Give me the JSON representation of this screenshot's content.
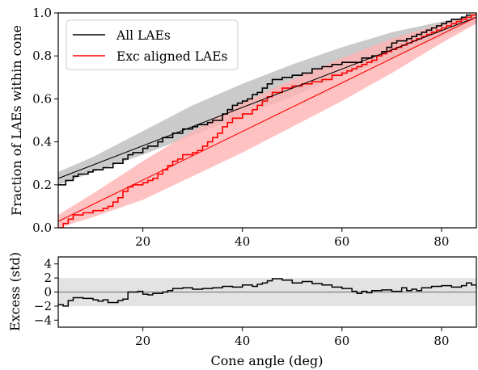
{
  "chart_data": [
    {
      "type": "line",
      "ylabel": "Fraction of LAEs within cone",
      "xlim": [
        3,
        87
      ],
      "ylim": [
        0,
        1
      ],
      "xticks": [
        "20",
        "40",
        "60",
        "80"
      ],
      "yticks": [
        "0.0",
        "0.2",
        "0.4",
        "0.6",
        "0.8",
        "1.0"
      ],
      "legend": {
        "placement": "top-left",
        "entries": [
          "All LAEs",
          "Exc aligned LAEs"
        ]
      },
      "series": [
        {
          "name": "All LAEs",
          "style": "step",
          "color": "#000000",
          "x": [
            3,
            4.5,
            6,
            7,
            9,
            10,
            12,
            14,
            16,
            17,
            18,
            20,
            21,
            23,
            24,
            26,
            28,
            30,
            31,
            33,
            34,
            36,
            37,
            38,
            39,
            40,
            41,
            42,
            43,
            44,
            45,
            46,
            48,
            50,
            52,
            54,
            56,
            58,
            60,
            62,
            64,
            66,
            68,
            69,
            70,
            71,
            72,
            73,
            74,
            75,
            76,
            77,
            78,
            79,
            80,
            81,
            82,
            83,
            84,
            85,
            86,
            87
          ],
          "y": [
            0.2,
            0.22,
            0.24,
            0.25,
            0.26,
            0.27,
            0.28,
            0.3,
            0.32,
            0.34,
            0.35,
            0.37,
            0.38,
            0.4,
            0.42,
            0.44,
            0.46,
            0.47,
            0.48,
            0.49,
            0.5,
            0.53,
            0.55,
            0.57,
            0.58,
            0.59,
            0.6,
            0.62,
            0.63,
            0.65,
            0.67,
            0.69,
            0.7,
            0.71,
            0.72,
            0.74,
            0.75,
            0.76,
            0.77,
            0.77,
            0.79,
            0.8,
            0.82,
            0.84,
            0.86,
            0.87,
            0.87,
            0.88,
            0.89,
            0.9,
            0.91,
            0.92,
            0.93,
            0.94,
            0.95,
            0.96,
            0.97,
            0.97,
            0.98,
            0.99,
            0.99,
            1.0
          ]
        },
        {
          "name": "Exc aligned LAEs",
          "style": "step",
          "color": "#ff0000",
          "x": [
            3,
            4,
            5,
            6,
            8,
            10,
            12,
            13,
            14,
            15,
            16,
            17,
            18,
            20,
            21,
            22,
            23,
            24,
            25,
            26,
            27,
            28,
            30,
            31,
            32,
            33,
            34,
            35,
            36,
            37,
            38,
            40,
            42,
            43,
            44,
            45,
            46,
            48,
            50,
            52,
            54,
            56,
            58,
            60,
            61,
            62,
            63,
            64,
            65,
            66,
            67,
            68,
            69,
            70,
            71,
            72,
            73,
            74,
            75,
            76,
            77,
            78,
            79,
            80,
            81,
            82,
            83,
            84,
            85,
            86,
            87
          ],
          "y": [
            0.0,
            0.02,
            0.04,
            0.06,
            0.07,
            0.08,
            0.09,
            0.1,
            0.12,
            0.14,
            0.17,
            0.19,
            0.2,
            0.21,
            0.22,
            0.23,
            0.25,
            0.27,
            0.29,
            0.31,
            0.32,
            0.34,
            0.35,
            0.36,
            0.38,
            0.4,
            0.42,
            0.44,
            0.47,
            0.49,
            0.51,
            0.53,
            0.55,
            0.57,
            0.59,
            0.61,
            0.63,
            0.65,
            0.66,
            0.67,
            0.68,
            0.69,
            0.71,
            0.72,
            0.73,
            0.74,
            0.75,
            0.76,
            0.77,
            0.78,
            0.8,
            0.81,
            0.82,
            0.83,
            0.84,
            0.85,
            0.86,
            0.87,
            0.88,
            0.89,
            0.9,
            0.91,
            0.92,
            0.93,
            0.94,
            0.95,
            0.96,
            0.97,
            0.98,
            0.99,
            1.0
          ]
        },
        {
          "name": "",
          "style": "line",
          "color": "#000000",
          "x": [
            3,
            87
          ],
          "y": [
            0.23,
            0.98
          ]
        },
        {
          "name": "",
          "style": "line",
          "color": "#ff0000",
          "x": [
            3,
            87
          ],
          "y": [
            0.03,
            0.98
          ]
        }
      ],
      "bands": [
        {
          "color": "#bdbdbd",
          "x": [
            3,
            10,
            20,
            30,
            40,
            50,
            60,
            70,
            80,
            87
          ],
          "lower": [
            0.2,
            0.26,
            0.34,
            0.43,
            0.52,
            0.61,
            0.71,
            0.79,
            0.89,
            0.95
          ],
          "upper": [
            0.26,
            0.33,
            0.45,
            0.57,
            0.67,
            0.76,
            0.84,
            0.91,
            0.96,
            0.99
          ]
        },
        {
          "color": "#ffb3b3",
          "x": [
            3,
            10,
            20,
            30,
            40,
            50,
            60,
            70,
            80,
            87
          ],
          "lower": [
            0.0,
            0.05,
            0.13,
            0.24,
            0.35,
            0.47,
            0.59,
            0.72,
            0.86,
            0.95
          ],
          "upper": [
            0.06,
            0.16,
            0.31,
            0.45,
            0.58,
            0.69,
            0.79,
            0.88,
            0.95,
            0.99
          ]
        }
      ]
    },
    {
      "type": "line",
      "xlabel": "Cone angle (deg)",
      "ylabel": "Excess (std)",
      "xlim": [
        3,
        87
      ],
      "ylim": [
        -5,
        5
      ],
      "xticks": [
        "20",
        "40",
        "60",
        "80"
      ],
      "yticks": [
        "4",
        "2",
        "0",
        "−2",
        "−4"
      ],
      "band": {
        "lower": -2,
        "upper": 2,
        "color": "#e3e3e3"
      },
      "reference_line": 0,
      "series": [
        {
          "name": "",
          "style": "step",
          "color": "#000000",
          "x": [
            3,
            4,
            5,
            6,
            8,
            10,
            11,
            12,
            13,
            15,
            16,
            17,
            19,
            20,
            21,
            22,
            24,
            25,
            26,
            28,
            30,
            32,
            34,
            36,
            38,
            40,
            42,
            43,
            44,
            45,
            46,
            48,
            50,
            52,
            54,
            56,
            58,
            60,
            62,
            63,
            64,
            65,
            66,
            68,
            70,
            72,
            73,
            74,
            75,
            76,
            78,
            80,
            82,
            84,
            85,
            86,
            87
          ],
          "y": [
            -1.8,
            -2.0,
            -1.2,
            -0.8,
            -0.9,
            -1.1,
            -1.3,
            -1.1,
            -1.5,
            -1.2,
            -1.0,
            0.0,
            0.1,
            -0.3,
            -0.4,
            -0.2,
            0.0,
            0.2,
            0.5,
            0.6,
            0.4,
            0.5,
            0.6,
            0.8,
            0.7,
            1.0,
            0.8,
            1.1,
            1.3,
            1.6,
            1.9,
            1.7,
            1.3,
            1.5,
            1.2,
            1.0,
            0.7,
            0.5,
            0.1,
            -0.2,
            0.1,
            -0.1,
            0.2,
            0.3,
            0.1,
            0.6,
            0.2,
            0.4,
            0.2,
            0.6,
            0.8,
            0.9,
            0.7,
            0.9,
            1.3,
            1.0,
            0.5
          ]
        }
      ]
    }
  ]
}
